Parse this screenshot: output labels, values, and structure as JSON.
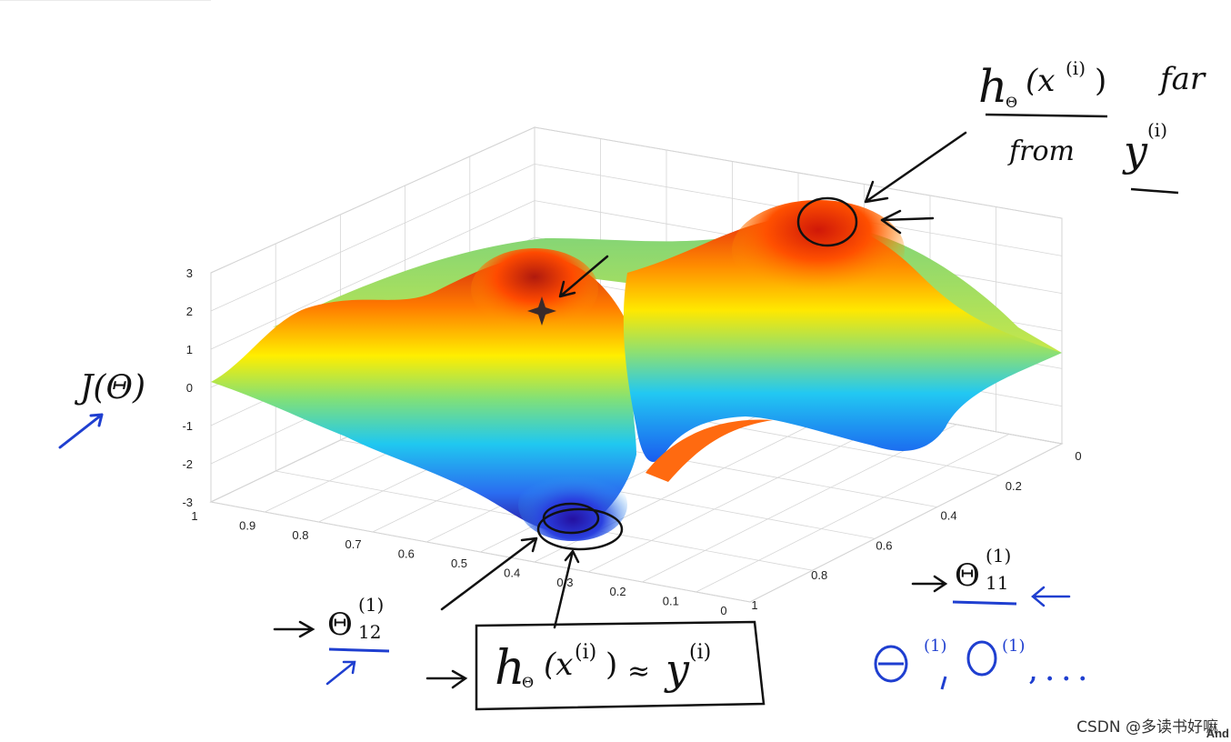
{
  "chart_data": {
    "type": "surface",
    "z_axis": {
      "label": "J(Θ)",
      "range": [
        -3,
        3
      ],
      "ticks": [
        "3",
        "2",
        "1",
        "0",
        "-1",
        "-2",
        "-3"
      ]
    },
    "left_axis": {
      "range": [
        0,
        1
      ],
      "ticks": [
        "1",
        "0.9",
        "0.8",
        "0.7",
        "0.6",
        "0.5",
        "0.4",
        "0.3",
        "0.2",
        "0.1",
        "0"
      ]
    },
    "right_axis": {
      "range": [
        0,
        1
      ],
      "ticks": [
        "0",
        "0.2",
        "0.4",
        "0.6",
        "0.8",
        "1"
      ]
    },
    "grid": true,
    "colormap": "jet"
  },
  "annotations": {
    "top_right_note": {
      "h": "h",
      "theta_sub": "Θ",
      "x_sup": "(x",
      "sup_i": "(i)",
      "close": ")",
      "far": "far",
      "from": "from",
      "y": "y",
      "y_sup": "(i)"
    },
    "bottom_box": {
      "h": "h",
      "theta_sub": "Θ",
      "x_part": "(x",
      "sup_i": "(i)",
      "close": ")",
      "approx": "≈",
      "y": "y",
      "y_sup": "(i)"
    },
    "theta12": {
      "base": "Θ",
      "sup": "(1)",
      "sub": "12"
    },
    "theta11": {
      "base": "Θ",
      "sup": "(1)",
      "sub": "11"
    },
    "theta_list": {
      "item1_sup": "(1)",
      "item2_sup": "(1)",
      "ellipsis": ", . . ."
    }
  },
  "watermark": "CSDN @多读书好嘛",
  "corner_text": "And"
}
